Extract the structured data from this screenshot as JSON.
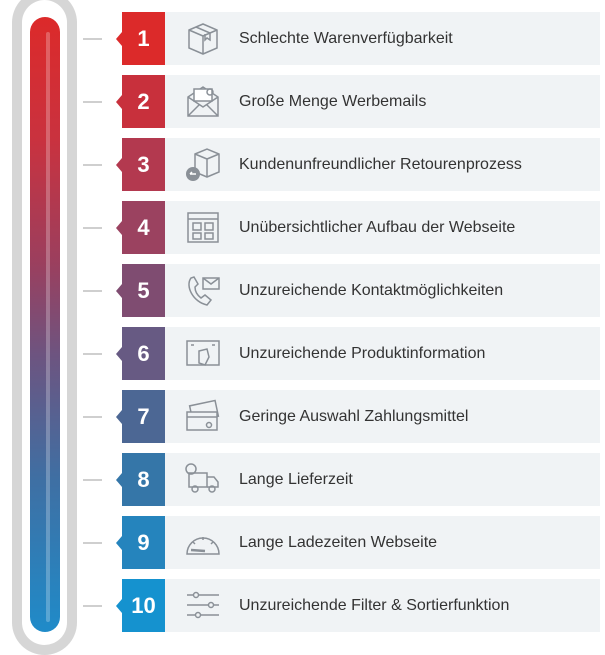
{
  "items": [
    {
      "rank": "1",
      "label": "Schlechte Warenverfügbarkeit",
      "icon": "box-icon",
      "color": "#dc2a2a"
    },
    {
      "rank": "2",
      "label": "Große Menge Werbemails",
      "icon": "envelope-icon",
      "color": "#c8303c"
    },
    {
      "rank": "3",
      "label": "Kundenunfreundlicher Retourenprozess",
      "icon": "return-box-icon",
      "color": "#b3394f"
    },
    {
      "rank": "4",
      "label": "Unübersichtlicher Aufbau der Webseite",
      "icon": "website-layout-icon",
      "color": "#9b4260"
    },
    {
      "rank": "5",
      "label": "Unzureichende Kontaktmöglichkeiten",
      "icon": "phone-mail-icon",
      "color": "#7f4c71"
    },
    {
      "rank": "6",
      "label": "Unzureichende Produktinformation",
      "icon": "product-touch-icon",
      "color": "#675a83"
    },
    {
      "rank": "7",
      "label": "Geringe Auswahl Zahlungsmittel",
      "icon": "payment-cards-icon",
      "color": "#4c6794"
    },
    {
      "rank": "8",
      "label": "Lange Lieferzeit",
      "icon": "delivery-truck-icon",
      "color": "#3576a8"
    },
    {
      "rank": "9",
      "label": "Lange Ladezeiten Webseite",
      "icon": "speedometer-icon",
      "color": "#2584bd"
    },
    {
      "rank": "10",
      "label": "Unzureichende Filter & Sortierfunktion",
      "icon": "sliders-icon",
      "color": "#1592cf"
    }
  ]
}
